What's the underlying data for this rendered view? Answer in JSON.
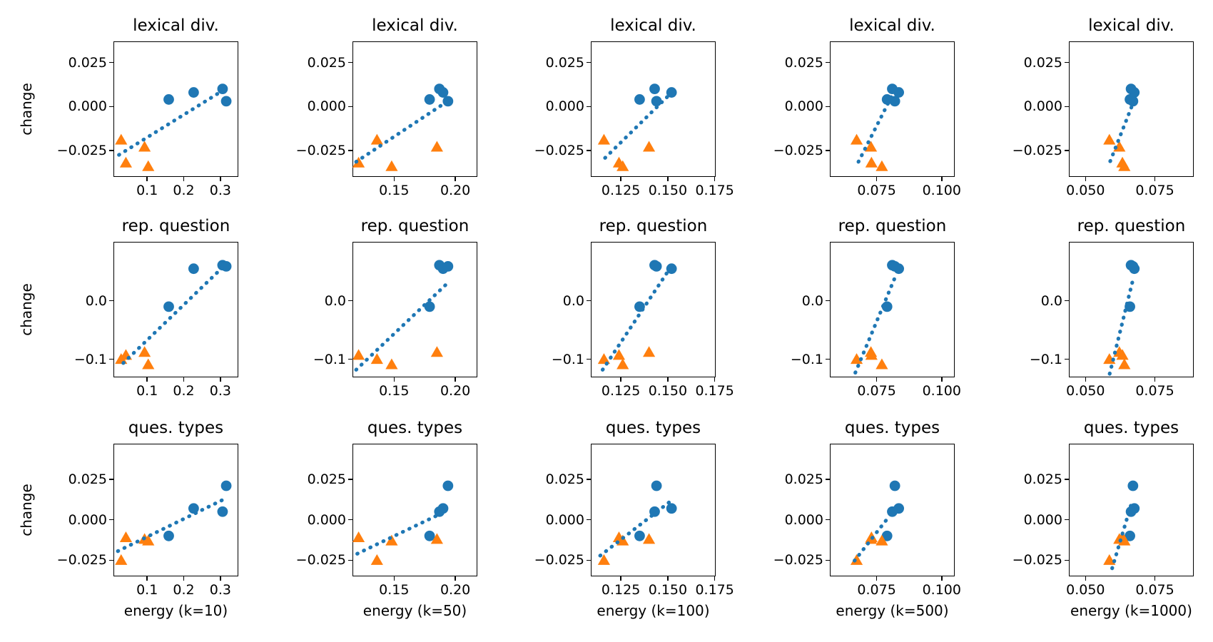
{
  "figure": {
    "background": "#ffffff",
    "text_color": "#000000",
    "axes_color": "#000000"
  },
  "chart_data": {
    "type": "scatter",
    "description": "3x5 grid of scatter plots: change in three dialogue metrics (rows) vs conversation energy computed with different k (columns). Blue circle group and orange triangle group, each subplot with a dotted blue linear-fit line.",
    "rows": [
      {
        "key": "lex",
        "title": "lexical div.",
        "ylabel": "change",
        "ylim": [
          -0.04,
          0.037
        ],
        "yticks": {
          "values": [
            0.025,
            0.0,
            -0.025
          ],
          "labels": [
            "0.025",
            "0.000",
            "−0.025"
          ]
        }
      },
      {
        "key": "rep",
        "title": "rep. question",
        "ylabel": "change",
        "ylim": [
          -0.131,
          0.101
        ],
        "yticks": {
          "values": [
            0.0,
            -0.1
          ],
          "labels": [
            "0.0",
            "−0.1"
          ]
        }
      },
      {
        "key": "ques",
        "title": "ques. types",
        "ylabel": "change",
        "ylim": [
          -0.035,
          0.047
        ],
        "yticks": {
          "values": [
            0.025,
            0.0,
            -0.025
          ],
          "labels": [
            "0.025",
            "0.000",
            "−0.025"
          ]
        }
      }
    ],
    "cols": [
      {
        "key": "k10",
        "xlabel": "energy (k=10)",
        "xlim": [
          0.008,
          0.349
        ],
        "xticks": {
          "values": [
            0.1,
            0.2,
            0.3
          ],
          "labels": [
            "0.1",
            "0.2",
            "0.3"
          ]
        }
      },
      {
        "key": "k50",
        "xlabel": "energy (k=50)",
        "xlim": [
          0.116,
          0.218
        ],
        "xticks": {
          "values": [
            0.15,
            0.2
          ],
          "labels": [
            "0.15",
            "0.20"
          ]
        }
      },
      {
        "key": "k100",
        "xlabel": "energy (k=100)",
        "xlim": [
          0.109,
          0.1755
        ],
        "xticks": {
          "values": [
            0.125,
            0.15,
            0.175
          ],
          "labels": [
            "0.125",
            "0.150",
            "0.175"
          ]
        }
      },
      {
        "key": "k500",
        "xlabel": "energy (k=500)",
        "xlim": [
          0.057,
          0.105
        ],
        "xticks": {
          "values": [
            0.075,
            0.1
          ],
          "labels": [
            "0.075",
            "0.100"
          ]
        }
      },
      {
        "key": "k1000",
        "xlabel": "energy (k=1000)",
        "xlim": [
          0.044,
          0.089
        ],
        "xticks": {
          "values": [
            0.05,
            0.075
          ],
          "labels": [
            "0.050",
            "0.075"
          ]
        }
      }
    ],
    "series": [
      {
        "name": "positive-change-group",
        "marker": "circle",
        "color": "#1f77b4",
        "points": [
          {
            "energy": {
              "k10": 0.159,
              "k50": 0.179,
              "k100": 0.135,
              "k500": 0.079,
              "k1000": 0.066
            },
            "change": {
              "lex": 0.004,
              "rep": -0.01,
              "ques": -0.01
            }
          },
          {
            "energy": {
              "k10": 0.227,
              "k50": 0.19,
              "k100": 0.152,
              "k500": 0.0835,
              "k1000": 0.0676
            },
            "change": {
              "lex": 0.008,
              "rep": 0.055,
              "ques": 0.007
            }
          },
          {
            "energy": {
              "k10": 0.306,
              "k50": 0.187,
              "k100": 0.143,
              "k500": 0.081,
              "k1000": 0.0664
            },
            "change": {
              "lex": 0.01,
              "rep": 0.061,
              "ques": 0.005
            }
          },
          {
            "energy": {
              "k10": 0.316,
              "k50": 0.194,
              "k100": 0.144,
              "k500": 0.082,
              "k1000": 0.0671
            },
            "change": {
              "lex": 0.003,
              "rep": 0.059,
              "ques": 0.021
            }
          }
        ]
      },
      {
        "name": "negative-change-group",
        "marker": "triangle",
        "color": "#ff7f0e",
        "points": [
          {
            "energy": {
              "k10": 0.029,
              "k50": 0.136,
              "k100": 0.116,
              "k500": 0.0673,
              "k1000": 0.0586
            },
            "change": {
              "lex": -0.019,
              "rep": -0.1,
              "ques": -0.025
            }
          },
          {
            "energy": {
              "k10": 0.042,
              "k50": 0.121,
              "k100": 0.124,
              "k500": 0.073,
              "k1000": 0.0633
            },
            "change": {
              "lex": -0.032,
              "rep": -0.093,
              "ques": -0.011
            }
          },
          {
            "energy": {
              "k10": 0.093,
              "k50": 0.185,
              "k100": 0.14,
              "k500": 0.0728,
              "k1000": 0.0622
            },
            "change": {
              "lex": -0.023,
              "rep": -0.088,
              "ques": -0.012
            }
          },
          {
            "energy": {
              "k10": 0.103,
              "k50": 0.148,
              "k100": 0.126,
              "k500": 0.077,
              "k1000": 0.064
            },
            "change": {
              "lex": -0.034,
              "rep": -0.109,
              "ques": -0.013
            }
          }
        ]
      }
    ],
    "trend_lines": {
      "color": "#1f77b4",
      "style": "dotted",
      "lex": {
        "k10": [
          [
            0.023,
            -0.0275
          ],
          [
            0.31,
            0.0095
          ]
        ],
        "k50": [
          [
            0.119,
            -0.0314
          ],
          [
            0.195,
            0.0036
          ]
        ],
        "k100": [
          [
            0.1166,
            -0.0292
          ],
          [
            0.151,
            0.0068
          ]
        ],
        "k500": [
          [
            0.068,
            -0.0314
          ],
          [
            0.0809,
            0.0062
          ]
        ],
        "k1000": [
          [
            0.0589,
            -0.0311
          ],
          [
            0.0669,
            0.001
          ]
        ]
      },
      "rep": {
        "k10": [
          [
            0.035,
            -0.1065
          ],
          [
            0.314,
            0.062
          ]
        ],
        "k50": [
          [
            0.119,
            -0.118
          ],
          [
            0.1945,
            0.032
          ]
        ],
        "k100": [
          [
            0.1153,
            -0.118
          ],
          [
            0.15,
            0.05
          ]
        ],
        "k500": [
          [
            0.0668,
            -0.123
          ],
          [
            0.0827,
            0.047
          ]
        ],
        "k1000": [
          [
            0.0587,
            -0.125
          ],
          [
            0.0673,
            0.04
          ]
        ]
      },
      "ques": {
        "k10": [
          [
            0.02,
            -0.0194
          ],
          [
            0.32,
            0.0138
          ]
        ],
        "k50": [
          [
            0.1199,
            -0.021
          ],
          [
            0.1916,
            0.005
          ]
        ],
        "k100": [
          [
            0.114,
            -0.0222
          ],
          [
            0.1525,
            0.0124
          ]
        ],
        "k500": [
          [
            0.0665,
            -0.0253
          ],
          [
            0.0788,
            0.0
          ]
        ],
        "k1000": [
          [
            0.0596,
            -0.03
          ],
          [
            0.0669,
            0.012
          ]
        ]
      }
    }
  }
}
